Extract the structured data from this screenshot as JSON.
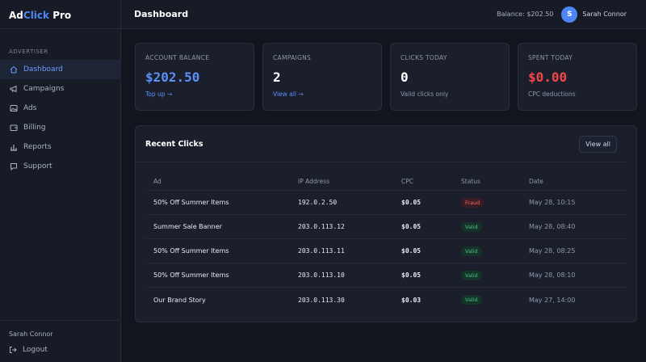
{
  "app": {
    "name_prefix": "Ad",
    "name_accent": "Click",
    "name_suffix": " Pro"
  },
  "sidebar": {
    "section": "ADVERTISER",
    "items": [
      {
        "label": "Dashboard",
        "icon": "home-icon",
        "active": true
      },
      {
        "label": "Campaigns",
        "icon": "megaphone-icon"
      },
      {
        "label": "Ads",
        "icon": "image-icon"
      },
      {
        "label": "Billing",
        "icon": "wallet-icon"
      },
      {
        "label": "Reports",
        "icon": "bar-chart-icon"
      },
      {
        "label": "Support",
        "icon": "chat-icon"
      }
    ],
    "footer_user": "Sarah Connor",
    "logout": "Logout"
  },
  "topbar": {
    "title": "Dashboard",
    "balance": "Balance: $202.50",
    "avatar_initial": "S",
    "user": "Sarah Connor"
  },
  "cards": [
    {
      "label": "ACCOUNT BALANCE",
      "value": "$202.50",
      "link": "Top up →"
    },
    {
      "label": "CAMPAIGNS",
      "value": "2",
      "link": "View all →"
    },
    {
      "label": "CLICKS TODAY",
      "value": "0",
      "sub": "Valid clicks only"
    },
    {
      "label": "SPENT TODAY",
      "value": "$0.00",
      "sub": "CPC deductions"
    }
  ],
  "recent": {
    "title": "Recent Clicks",
    "view_all": "View all",
    "columns": [
      "Ad",
      "IP Address",
      "CPC",
      "Status",
      "Date"
    ],
    "rows": [
      {
        "ad": "50% Off Summer Items",
        "ip": "192.0.2.50",
        "cpc": "$0.05",
        "status": "Fraud",
        "date": "May 28, 10:15"
      },
      {
        "ad": "Summer Sale Banner",
        "ip": "203.0.113.12",
        "cpc": "$0.05",
        "status": "Valid",
        "date": "May 28, 08:40"
      },
      {
        "ad": "50% Off Summer Items",
        "ip": "203.0.113.11",
        "cpc": "$0.05",
        "status": "Valid",
        "date": "May 28, 08:25"
      },
      {
        "ad": "50% Off Summer Items",
        "ip": "203.0.113.10",
        "cpc": "$0.05",
        "status": "Valid",
        "date": "May 28, 08:10"
      },
      {
        "ad": "Our Brand Story",
        "ip": "203.0.113.30",
        "cpc": "$0.03",
        "status": "Valid",
        "date": "May 27, 14:00"
      }
    ]
  },
  "colors": {
    "accent": "#4f86f7",
    "danger": "#f04848",
    "success": "#45c08a",
    "background": "#12151d"
  }
}
